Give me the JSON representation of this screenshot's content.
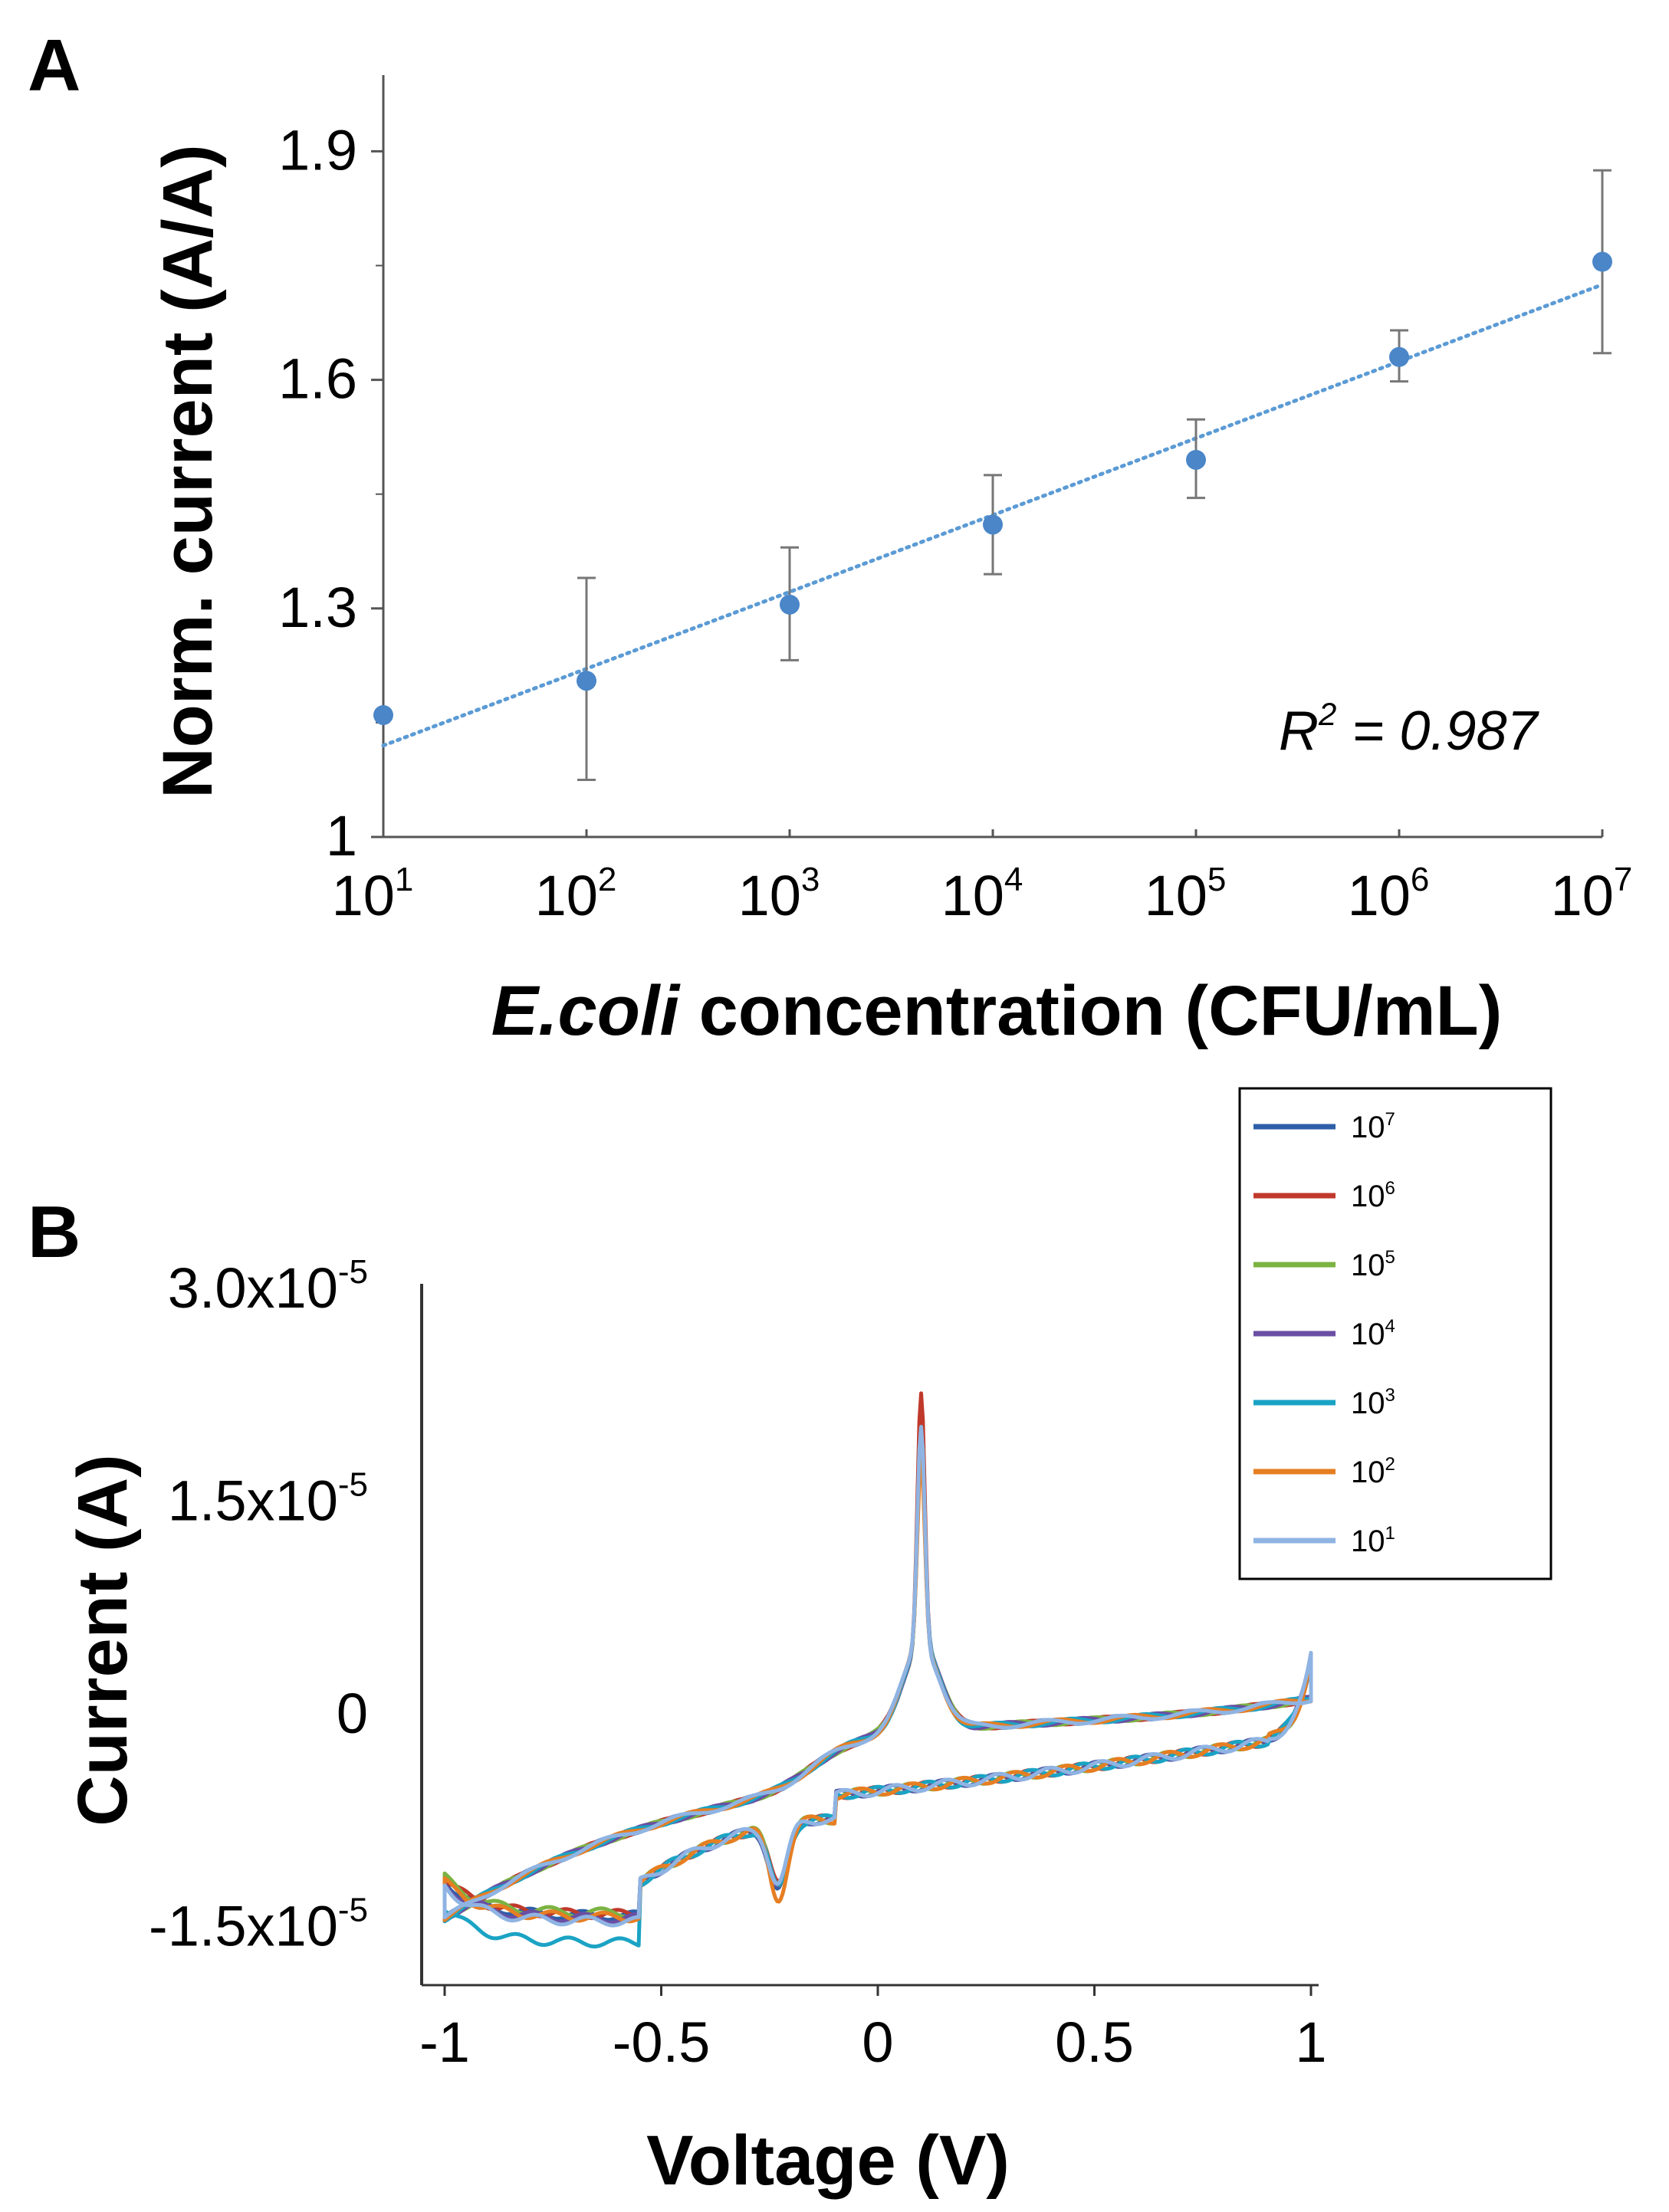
{
  "chart_data": [
    {
      "panel": "A",
      "type": "scatter",
      "xlabel_italic": "E.coli",
      "xlabel_rest": " concentration (CFU/mL)",
      "ylabel": "Norm. current (A/A)",
      "xscale": "log10",
      "xlim": [
        1,
        7
      ],
      "ylim": [
        1,
        2
      ],
      "yticks": [
        "1",
        "1.3",
        "1.6",
        "1.9"
      ],
      "ytick_values": [
        1,
        1.3,
        1.6,
        1.9
      ],
      "xticks": [
        {
          "base": "10",
          "exp": "1"
        },
        {
          "base": "10",
          "exp": "2"
        },
        {
          "base": "10",
          "exp": "3"
        },
        {
          "base": "10",
          "exp": "4"
        },
        {
          "base": "10",
          "exp": "5"
        },
        {
          "base": "10",
          "exp": "6"
        },
        {
          "base": "10",
          "exp": "7"
        }
      ],
      "x_exponents": [
        1,
        2,
        3,
        4,
        5,
        6,
        7
      ],
      "series": [
        {
          "name": "Norm. current",
          "color": "#4a86c8",
          "values": [
            1.16,
            1.205,
            1.305,
            1.41,
            1.495,
            1.63,
            1.755
          ],
          "err_low": [
            1.16,
            1.075,
            1.232,
            1.345,
            1.445,
            1.598,
            1.635
          ],
          "err_high": [
            1.16,
            1.34,
            1.38,
            1.475,
            1.548,
            1.665,
            1.875
          ]
        }
      ],
      "trendline": {
        "style": "dotted",
        "color": "#5b9bd5",
        "y_start": 1.12,
        "y_end": 1.725
      },
      "annotation": {
        "r2_base": "R",
        "r2_exp": "2",
        "r2_rest": " = 0.987"
      }
    },
    {
      "panel": "B",
      "type": "line",
      "xlabel": "Voltage (V)",
      "ylabel": "Current (A)",
      "xlim": [
        -1,
        1
      ],
      "ylim": [
        -1.7e-05,
        3e-05
      ],
      "xticks": [
        "-1",
        "-0.5",
        "0",
        "0.5",
        "1"
      ],
      "xtick_values": [
        -1,
        -0.5,
        0,
        0.5,
        1
      ],
      "yticks": [
        {
          "base": "3.0x10",
          "exp": "-5"
        },
        {
          "base": "1.5x10",
          "exp": "-5"
        },
        {
          "base": "0",
          "exp": ""
        },
        {
          "base": "-1.5x10",
          "exp": "-5"
        }
      ],
      "ytick_values": [
        3e-05,
        1.5e-05,
        0,
        -1.5e-05
      ],
      "legend_position": "top-right",
      "series": [
        {
          "name_base": "10",
          "name_exp": "7",
          "color": "#2e5fa8",
          "peak": 2.1e-05,
          "red_min": -1.36e-05,
          "floor": -1.43e-05
        },
        {
          "name_base": "10",
          "name_exp": "6",
          "color": "#c0392b",
          "peak": 2.45e-05,
          "red_min": -1.32e-05,
          "floor": -1.42e-05
        },
        {
          "name_base": "10",
          "name_exp": "5",
          "color": "#7cb342",
          "peak": 2.2e-05,
          "red_min": -1.3e-05,
          "floor": -1.41e-05
        },
        {
          "name_base": "10",
          "name_exp": "4",
          "color": "#6a4fa3",
          "peak": 2.15e-05,
          "red_min": -1.33e-05,
          "floor": -1.45e-05
        },
        {
          "name_base": "10",
          "name_exp": "3",
          "color": "#1aa3c4",
          "peak": 2e-05,
          "red_min": -1.35e-05,
          "floor": -1.62e-05
        },
        {
          "name_base": "10",
          "name_exp": "2",
          "color": "#e67e22",
          "peak": 1.95e-05,
          "red_min": -1.42e-05,
          "floor": -1.44e-05
        },
        {
          "name_base": "10",
          "name_exp": "1",
          "color": "#8fb4e3",
          "peak": 2.2e-05,
          "red_min": -1.31e-05,
          "floor": -1.47e-05
        }
      ]
    }
  ]
}
